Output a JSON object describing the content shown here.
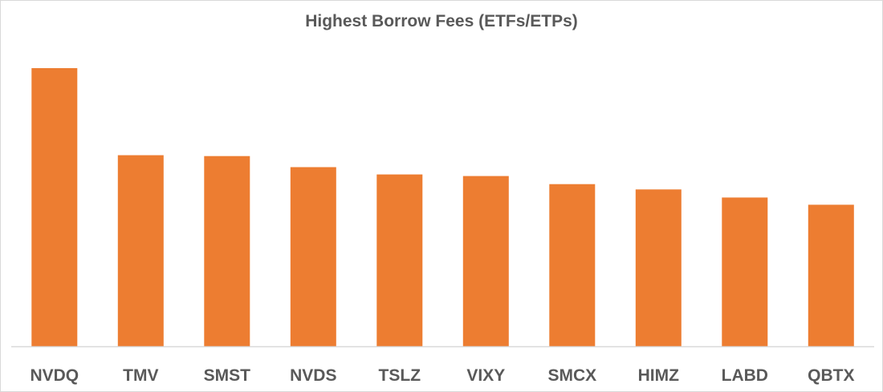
{
  "chart_data": {
    "type": "bar",
    "title": "Highest Borrow Fees (ETFs/ETPs)",
    "xlabel": "",
    "ylabel": "",
    "categories": [
      "NVDQ",
      "TMV",
      "SMST",
      "NVDS",
      "TSLZ",
      "VIXY",
      "SMCX",
      "HIMZ",
      "LABD",
      "QBTX"
    ],
    "values": [
      100,
      68.7,
      68.4,
      64.4,
      61.8,
      61.2,
      58.3,
      56.4,
      53.5,
      50.9
    ],
    "ylim": [
      0,
      100
    ],
    "grid": false,
    "legend": "none",
    "colors": {
      "bar": "#ED7D31",
      "axis": "#D9D9D9",
      "text": "#595959"
    }
  }
}
